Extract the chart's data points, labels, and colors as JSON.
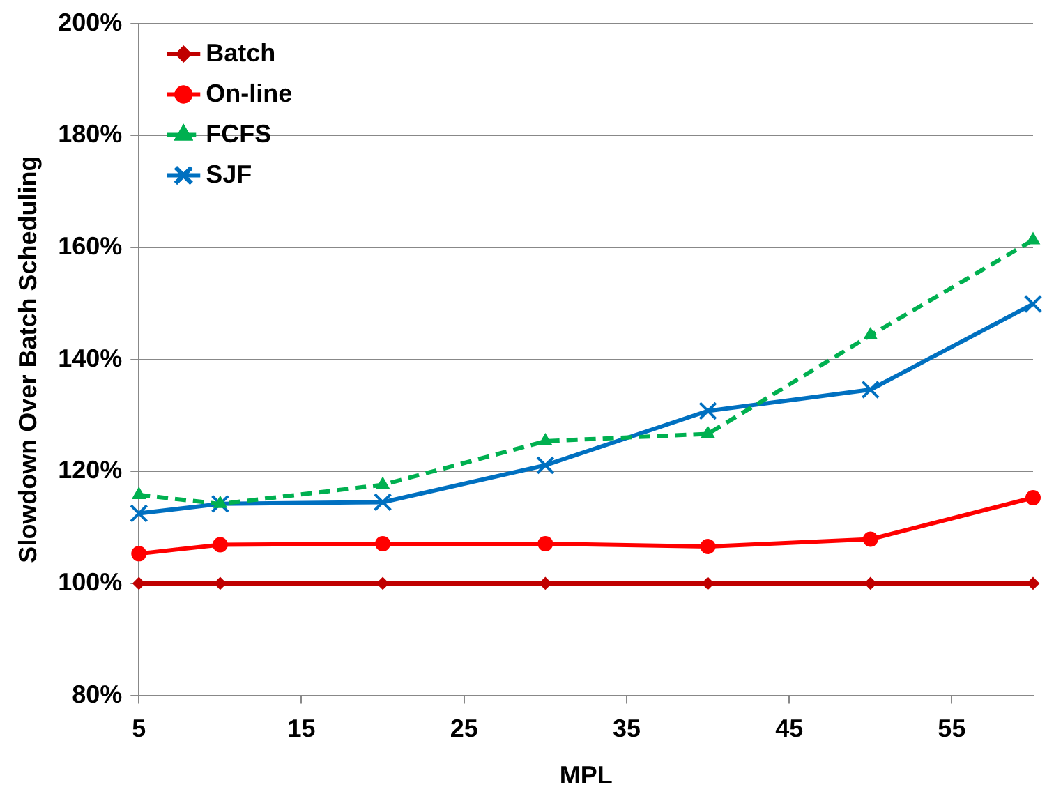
{
  "chart_data": {
    "type": "line",
    "xlabel": "MPL",
    "ylabel": "Slowdown Over Batch Scheduling",
    "x": [
      5,
      10,
      20,
      30,
      40,
      50,
      60
    ],
    "xlim": [
      5,
      60
    ],
    "xticks": [
      5,
      15,
      25,
      35,
      45,
      55
    ],
    "ylim": [
      80,
      200
    ],
    "yticks": [
      {
        "value": 80,
        "label": "80%"
      },
      {
        "value": 100,
        "label": "100%"
      },
      {
        "value": 120,
        "label": "120%"
      },
      {
        "value": 140,
        "label": "140%"
      },
      {
        "value": 160,
        "label": "160%"
      },
      {
        "value": 180,
        "label": "180%"
      },
      {
        "value": 200,
        "label": "200%"
      }
    ],
    "grid": "y",
    "legend": "top left",
    "series": [
      {
        "name": "Batch",
        "color": "#c00000",
        "marker": "diamond",
        "line_style": "solid",
        "values": [
          100,
          100,
          100,
          100,
          100,
          100,
          100
        ]
      },
      {
        "name": "On-line",
        "color": "#ff0000",
        "marker": "circle",
        "line_style": "solid",
        "values": [
          105.3,
          106.9,
          107.1,
          107.1,
          106.6,
          107.9,
          115.3
        ]
      },
      {
        "name": "FCFS",
        "color": "#00b050",
        "marker": "triangle",
        "line_style": "dashed",
        "values": [
          115.8,
          114.2,
          117.6,
          125.4,
          126.7,
          144.3,
          161.3
        ]
      },
      {
        "name": "SJF",
        "color": "#0070c0",
        "marker": "cross",
        "line_style": "solid",
        "values": [
          112.5,
          114.2,
          114.5,
          121.1,
          130.8,
          134.6,
          149.9
        ]
      }
    ]
  }
}
